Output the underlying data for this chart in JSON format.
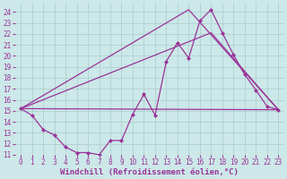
{
  "xlabel": "Windchill (Refroidissement éolien,°C)",
  "background_color": "#cce8e8",
  "grid_color": "#aacccc",
  "line_color": "#993399",
  "xlim": [
    -0.5,
    23.5
  ],
  "ylim": [
    11,
    24.8
  ],
  "yticks": [
    11,
    12,
    13,
    14,
    15,
    16,
    17,
    18,
    19,
    20,
    21,
    22,
    23,
    24
  ],
  "xticks": [
    0,
    1,
    2,
    3,
    4,
    5,
    6,
    7,
    8,
    9,
    10,
    11,
    12,
    13,
    14,
    15,
    16,
    17,
    18,
    19,
    20,
    21,
    22,
    23
  ],
  "line1_x": [
    0,
    1,
    2,
    3,
    4,
    5,
    6,
    7,
    8,
    9,
    10,
    11,
    12,
    13,
    14,
    15,
    16,
    17,
    18,
    19,
    20,
    21,
    22,
    23
  ],
  "line1_y": [
    15.2,
    14.6,
    13.3,
    12.8,
    11.7,
    11.2,
    11.2,
    11.0,
    12.3,
    12.3,
    14.7,
    16.5,
    14.6,
    19.5,
    21.2,
    19.8,
    23.2,
    24.2,
    22.1,
    20.1,
    18.3,
    16.9,
    15.4,
    15.1
  ],
  "line2_x": [
    0,
    15,
    23
  ],
  "line2_y": [
    15.2,
    24.2,
    15.1
  ],
  "line3_x": [
    0,
    17,
    23
  ],
  "line3_y": [
    15.2,
    22.1,
    15.1
  ],
  "line4_x": [
    0,
    23
  ],
  "line4_y": [
    15.2,
    15.1
  ],
  "marker": "D",
  "markersize": 2.0,
  "linewidth": 0.9,
  "tick_fontsize": 5.5,
  "xlabel_fontsize": 6.5
}
